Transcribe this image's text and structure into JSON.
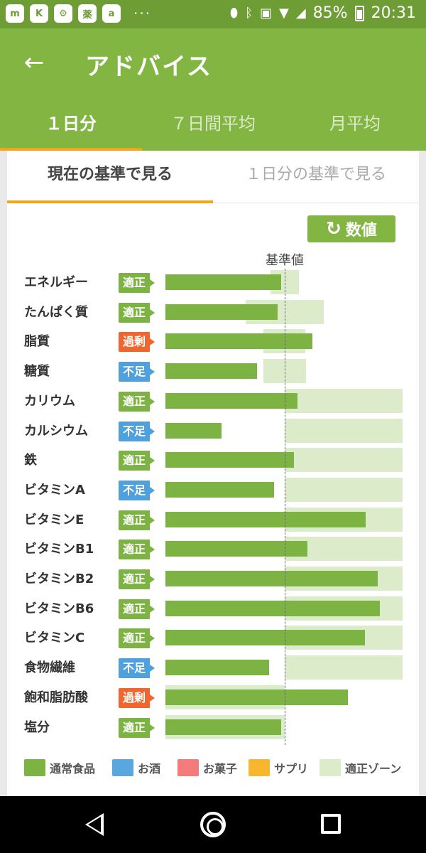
{
  "status_bar": {
    "battery": "85%",
    "time": "20:31",
    "apps": [
      "m",
      "K",
      "⚙",
      "薬",
      "a"
    ],
    "more": "···"
  },
  "app_bar": {
    "title": "アドバイス",
    "back_icon": "arrow-left-icon",
    "tabs": [
      {
        "label": "１日分",
        "active": true
      },
      {
        "label": "７日間平均",
        "active": false
      },
      {
        "label": "月平均",
        "active": false
      }
    ]
  },
  "subtabs": [
    {
      "label": "現在の基準で見る",
      "active": true
    },
    {
      "label": "１日分の基準で見る",
      "active": false
    }
  ],
  "value_button": {
    "label": "数値",
    "icon": "refresh-icon"
  },
  "baseline_label": "基準値",
  "colors": {
    "primary": "#82b541",
    "status_bar": "#6f9d35",
    "accent": "#f2a51a",
    "status_ok": "#7cb342",
    "status_low": "#4ea1dc",
    "status_excess": "#f2662e",
    "zone": "#dcebc9"
  },
  "chart_data": {
    "type": "bar",
    "baseline_label": "基準値",
    "rows": [
      {
        "name": "エネルギー",
        "status": "適正",
        "status_type": "ok",
        "value": 0.97,
        "zone": [
          0.88,
          1.12
        ]
      },
      {
        "name": "たんぱく質",
        "status": "適正",
        "status_type": "ok",
        "value": 0.94,
        "zone": [
          0.67,
          1.33
        ]
      },
      {
        "name": "脂質",
        "status": "過剰",
        "status_type": "excess",
        "value": 1.23,
        "zone": [
          0.82,
          1.17
        ]
      },
      {
        "name": "糖質",
        "status": "不足",
        "status_type": "low",
        "value": 0.77,
        "zone": [
          0.82,
          1.18
        ]
      },
      {
        "name": "カリウム",
        "status": "適正",
        "status_type": "ok",
        "value": 1.11,
        "zone": [
          1.0,
          2.0
        ]
      },
      {
        "name": "カルシウム",
        "status": "不足",
        "status_type": "low",
        "value": 0.47,
        "zone": [
          1.0,
          2.0
        ]
      },
      {
        "name": "鉄",
        "status": "適正",
        "status_type": "ok",
        "value": 1.08,
        "zone": [
          1.0,
          2.0
        ]
      },
      {
        "name": "ビタミンA",
        "status": "不足",
        "status_type": "low",
        "value": 0.91,
        "zone": [
          1.0,
          2.0
        ]
      },
      {
        "name": "ビタミンE",
        "status": "適正",
        "status_type": "ok",
        "value": 1.68,
        "zone": [
          1.0,
          2.0
        ]
      },
      {
        "name": "ビタミンB1",
        "status": "適正",
        "status_type": "ok",
        "value": 1.19,
        "zone": [
          1.0,
          2.0
        ]
      },
      {
        "name": "ビタミンB2",
        "status": "適正",
        "status_type": "ok",
        "value": 1.78,
        "zone": [
          1.0,
          2.0
        ]
      },
      {
        "name": "ビタミンB6",
        "status": "適正",
        "status_type": "ok",
        "value": 1.8,
        "zone": [
          1.0,
          2.0
        ]
      },
      {
        "name": "ビタミンC",
        "status": "適正",
        "status_type": "ok",
        "value": 1.67,
        "zone": [
          1.0,
          2.0
        ]
      },
      {
        "name": "食物繊維",
        "status": "不足",
        "status_type": "low",
        "value": 0.87,
        "zone": [
          1.0,
          2.0
        ]
      },
      {
        "name": "飽和脂肪酸",
        "status": "過剰",
        "status_type": "excess",
        "value": 1.53,
        "zone": [
          0.0,
          1.0
        ]
      },
      {
        "name": "塩分",
        "status": "適正",
        "status_type": "ok",
        "value": 0.97,
        "zone": [
          0.0,
          1.0
        ]
      }
    ]
  },
  "legend": [
    {
      "label": "通常食品",
      "color": "#7cb342"
    },
    {
      "label": "お酒",
      "color": "#5aa6df"
    },
    {
      "label": "お菓子",
      "color": "#f47b7b"
    },
    {
      "label": "サプリ",
      "color": "#f7b62d"
    },
    {
      "label": "適正ゾーン",
      "color": "#dcebc9"
    }
  ],
  "nav_bar": {
    "back_icon": "back-triangle-icon",
    "home_icon": "home-circle-icon",
    "recent_icon": "recent-square-icon"
  }
}
